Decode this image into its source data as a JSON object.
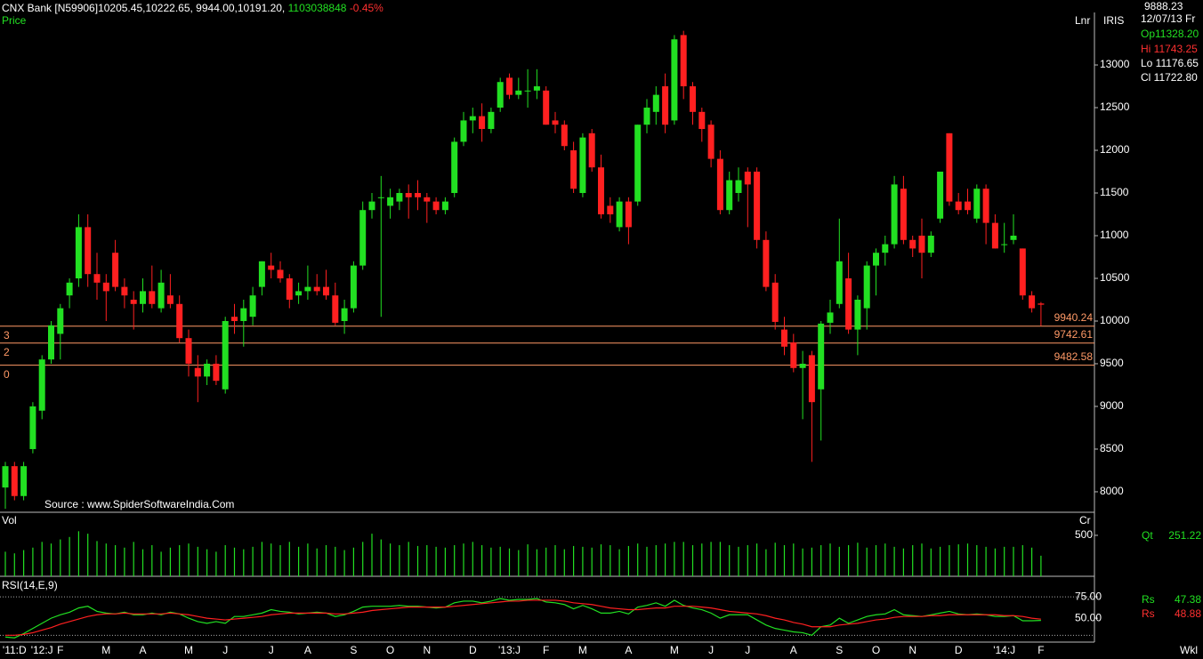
{
  "header": {
    "symbol": "CNX Bank [N59906]",
    "ohlc": "10205.45,10222.65, 9944.00,10191.20,",
    "volume": "1103038848",
    "change": "-0.45%"
  },
  "info_panel": {
    "price": "9888.23",
    "date": "12/07/13 Fr",
    "open": "Op11328.20",
    "high": "Hi 11743.25",
    "low": "Lo 11176.65",
    "close": "Cl 11722.80"
  },
  "footer": "Wkl",
  "chart_data": [
    {
      "type": "candlestick",
      "label": "Price",
      "scale_label": "Lnr",
      "indicator": "IRIS",
      "source": "Source : www.SpiderSoftwareIndia.Com",
      "up_color": "#22e022",
      "down_color": "#ff2020",
      "categories": [
        null,
        "'11:D",
        null,
        null,
        "'12:J",
        null,
        "F",
        null,
        null,
        null,
        null,
        "M",
        null,
        null,
        null,
        "A",
        null,
        null,
        null,
        null,
        "M",
        null,
        null,
        null,
        "J",
        null,
        null,
        null,
        null,
        "J",
        null,
        null,
        null,
        "A",
        null,
        null,
        null,
        null,
        "S",
        null,
        null,
        null,
        "O",
        null,
        null,
        null,
        "N",
        null,
        null,
        null,
        null,
        "D",
        null,
        null,
        null,
        "'13:J",
        null,
        null,
        null,
        "F",
        null,
        null,
        null,
        "M",
        null,
        null,
        null,
        null,
        "A",
        null,
        null,
        null,
        null,
        "M",
        null,
        null,
        null,
        "J",
        null,
        null,
        null,
        "J",
        null,
        null,
        null,
        null,
        "A",
        null,
        null,
        null,
        null,
        "S",
        null,
        null,
        null,
        "O",
        null,
        null,
        null,
        "N",
        null,
        null,
        null,
        null,
        "D",
        null,
        null,
        null,
        null,
        "'14:J",
        null,
        null,
        null,
        "F"
      ],
      "open": [
        8050,
        8300,
        7950,
        8500,
        8950,
        9550,
        9850,
        10300,
        10500,
        11100,
        10550,
        10450,
        10800,
        10400,
        10250,
        10200,
        10350,
        10150,
        10300,
        10200,
        9800,
        9450,
        9350,
        9500,
        9200,
        10050,
        10000,
        10050,
        10400,
        10650,
        10600,
        10500,
        10300,
        10350,
        10400,
        10400,
        10300,
        10000,
        10150,
        10650,
        11300,
        11450,
        11350,
        11400,
        11500,
        11500,
        11450,
        11400,
        11300,
        11500,
        12100,
        12350,
        12400,
        12250,
        12500,
        12850,
        12650,
        12700,
        12700,
        12700,
        12350,
        12300,
        12000,
        11500,
        12200,
        11800,
        11350,
        11100,
        11400,
        11400,
        12300,
        12450,
        12750,
        12350,
        13350,
        12750,
        12450,
        12300,
        11900,
        11300,
        11500,
        11750,
        11750,
        10950,
        10450,
        9900,
        9750,
        9450,
        9600,
        9200,
        9980,
        10200,
        10500,
        9900,
        10150,
        10650,
        10800,
        10900,
        11550,
        10950,
        11000,
        10800,
        11200,
        12200,
        11400,
        11400,
        11200,
        11550,
        11150,
        10900,
        10950,
        10850,
        10300,
        10205.45
      ],
      "high": [
        8350,
        8350,
        8350,
        9050,
        9600,
        10000,
        10200,
        10500,
        11250,
        11250,
        10800,
        10550,
        10950,
        10500,
        10350,
        10500,
        10650,
        10600,
        10550,
        10300,
        9900,
        9600,
        9550,
        9600,
        10050,
        10200,
        10250,
        10400,
        10700,
        10800,
        10700,
        10550,
        10450,
        10650,
        10550,
        10600,
        10450,
        10250,
        10700,
        11400,
        11500,
        11700,
        11550,
        11550,
        11600,
        11650,
        11500,
        11450,
        11450,
        12150,
        12450,
        12500,
        12550,
        12500,
        12850,
        12900,
        12850,
        12950,
        12950,
        12750,
        12450,
        12350,
        12100,
        12200,
        12250,
        11950,
        11450,
        11450,
        11450,
        12300,
        12600,
        12750,
        12900,
        13350,
        13400,
        12800,
        12500,
        12350,
        12000,
        11750,
        11800,
        11800,
        11800,
        11050,
        10550,
        10050,
        9850,
        9650,
        9650,
        10000,
        10250,
        11200,
        10800,
        10300,
        10700,
        10850,
        11000,
        11700,
        11700,
        11000,
        11200,
        11050,
        11750,
        12200,
        11500,
        11550,
        11600,
        11600,
        11250,
        11150,
        11250,
        10850,
        10350,
        10222.65
      ],
      "low": [
        7800,
        7900,
        7900,
        8450,
        8850,
        9500,
        9550,
        10150,
        10400,
        10400,
        10250,
        10000,
        10350,
        10150,
        9900,
        10100,
        10150,
        10100,
        10150,
        9750,
        9350,
        9050,
        9250,
        9250,
        9150,
        9850,
        9700,
        9950,
        10300,
        10500,
        10450,
        10150,
        10200,
        10250,
        10300,
        10250,
        9950,
        9850,
        10100,
        10600,
        11200,
        10050,
        11200,
        11300,
        11200,
        11300,
        11150,
        11250,
        11250,
        11450,
        12050,
        12200,
        12100,
        12200,
        12450,
        12600,
        12600,
        12500,
        12600,
        12300,
        12200,
        12000,
        11500,
        11450,
        11750,
        11200,
        11150,
        11050,
        10900,
        11350,
        12200,
        12300,
        12200,
        12300,
        12600,
        12300,
        12100,
        11800,
        11250,
        11250,
        11400,
        11100,
        10850,
        10350,
        9900,
        9600,
        9400,
        8850,
        8350,
        8600,
        9850,
        10150,
        9850,
        9600,
        9900,
        10300,
        10650,
        10850,
        10900,
        10750,
        10500,
        10750,
        11150,
        11350,
        11250,
        11250,
        11150,
        10900,
        10850,
        10800,
        10900,
        10250,
        10100,
        9944
      ],
      "close": [
        8300,
        7950,
        8300,
        9000,
        9550,
        9950,
        10150,
        10450,
        11100,
        10550,
        10450,
        10350,
        10400,
        10300,
        10200,
        10350,
        10200,
        10450,
        10200,
        9800,
        9500,
        9350,
        9500,
        9300,
        10000,
        10000,
        10150,
        10300,
        10700,
        10600,
        10500,
        10250,
        10350,
        10400,
        10350,
        10300,
        9980,
        10150,
        10650,
        11300,
        11400,
        11450,
        11450,
        11500,
        11450,
        11450,
        11400,
        11300,
        11400,
        12100,
        12350,
        12400,
        12250,
        12450,
        12800,
        12650,
        12700,
        12700,
        12750,
        12300,
        12300,
        12050,
        11550,
        12150,
        11800,
        11250,
        11250,
        11400,
        11100,
        12300,
        12500,
        12650,
        12300,
        13300,
        12750,
        12450,
        12250,
        11900,
        11300,
        11650,
        11650,
        11600,
        10950,
        10400,
        9990,
        9700,
        9450,
        9500,
        9050,
        9970,
        10100,
        10700,
        9900,
        10250,
        10650,
        10800,
        10900,
        11600,
        10950,
        10850,
        10800,
        11000,
        11750,
        11400,
        11300,
        11300,
        11550,
        11150,
        10850,
        10900,
        11000,
        10300,
        10150,
        10191.2
      ],
      "ylim": [
        7760,
        13615
      ],
      "yticks": [
        8000,
        8500,
        9000,
        9500,
        10000,
        10500,
        11000,
        11500,
        12000,
        12500,
        13000
      ],
      "levels": [
        {
          "value": 9940.24,
          "label": "3"
        },
        {
          "value": 9742.61,
          "label": "2"
        },
        {
          "value": 9482.58,
          "label": "0"
        }
      ],
      "level_color": "#ff9966"
    },
    {
      "type": "bar",
      "label": "Vol",
      "scale_label": "Cr",
      "name": "Qt",
      "color": "#22e022",
      "values": [
        300,
        280,
        320,
        350,
        420,
        400,
        450,
        480,
        550,
        520,
        430,
        400,
        380,
        350,
        420,
        330,
        380,
        300,
        350,
        380,
        400,
        360,
        330,
        300,
        380,
        350,
        330,
        360,
        420,
        400,
        380,
        420,
        360,
        400,
        340,
        380,
        360,
        320,
        350,
        420,
        520,
        450,
        400,
        380,
        420,
        370,
        380,
        360,
        350,
        380,
        400,
        420,
        380,
        350,
        360,
        340,
        320,
        390,
        330,
        350,
        380,
        330,
        370,
        360,
        350,
        390,
        380,
        330,
        370,
        400,
        360,
        380,
        400,
        420,
        420,
        380,
        400,
        420,
        420,
        380,
        360,
        380,
        400,
        330,
        410,
        380,
        400,
        340,
        350,
        380,
        400,
        360,
        380,
        410,
        350,
        380,
        400,
        360,
        340,
        380,
        400,
        340,
        360,
        380,
        390,
        400,
        380,
        360,
        340,
        360,
        360,
        380,
        350,
        251.22
      ],
      "ylim": [
        0,
        760
      ],
      "yticks": [
        500
      ]
    },
    {
      "type": "line",
      "title": "RSI(14,E,9)",
      "series": [
        {
          "name": "Rs",
          "color": "#22e022",
          "values": [
            28,
            27,
            32,
            38,
            44,
            50,
            54,
            57,
            62,
            64,
            58,
            56,
            55,
            57,
            54,
            54,
            56,
            54,
            57,
            55,
            50,
            46,
            44,
            46,
            44,
            52,
            52,
            54,
            56,
            60,
            58,
            57,
            55,
            56,
            57,
            56,
            52,
            54,
            58,
            63,
            64,
            64,
            64,
            65,
            64,
            64,
            63,
            62,
            63,
            68,
            70,
            70,
            68,
            70,
            73,
            71,
            72,
            72,
            73,
            69,
            68,
            66,
            61,
            65,
            61,
            56,
            56,
            58,
            55,
            63,
            65,
            68,
            64,
            71,
            65,
            62,
            60,
            56,
            50,
            54,
            54,
            54,
            48,
            42,
            38,
            36,
            34,
            33,
            30,
            40,
            42,
            50,
            44,
            48,
            52,
            54,
            55,
            60,
            54,
            53,
            52,
            54,
            56,
            58,
            55,
            54,
            55,
            54,
            52,
            52,
            53,
            47,
            47,
            47.38
          ]
        },
        {
          "name": "Rs",
          "color": "#ff2020",
          "values": [
            30,
            30,
            31,
            33,
            36,
            39,
            43,
            46,
            49,
            52,
            54,
            55,
            55,
            56,
            55,
            55,
            55,
            55,
            56,
            55,
            54,
            52,
            50,
            49,
            48,
            49,
            50,
            51,
            52,
            54,
            55,
            56,
            56,
            56,
            56,
            56,
            55,
            55,
            56,
            57,
            59,
            60,
            61,
            62,
            63,
            63,
            63,
            63,
            63,
            64,
            65,
            66,
            67,
            68,
            69,
            70,
            70,
            71,
            71,
            71,
            71,
            70,
            68,
            67,
            66,
            64,
            62,
            61,
            60,
            60,
            61,
            62,
            62,
            64,
            64,
            64,
            63,
            62,
            60,
            58,
            57,
            56,
            55,
            53,
            50,
            48,
            45,
            43,
            40,
            40,
            40,
            42,
            43,
            44,
            46,
            48,
            49,
            51,
            52,
            52,
            52,
            53,
            53,
            54,
            54,
            54,
            54,
            54,
            54,
            53,
            53,
            52,
            50,
            48.88
          ]
        }
      ],
      "ylim": [
        22,
        97
      ],
      "yticks": [
        {
          "value": 75,
          "label": "75.00"
        },
        {
          "value": 50,
          "label": "50.00"
        }
      ],
      "guides": [
        75,
        30
      ]
    }
  ]
}
